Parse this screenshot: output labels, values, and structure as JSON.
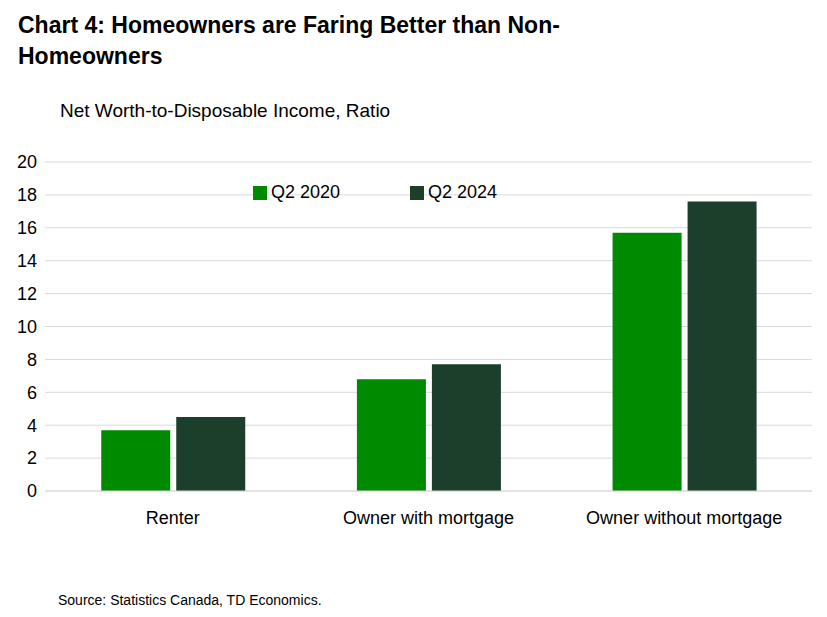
{
  "chart_data": {
    "type": "bar",
    "title": "Chart 4: Homeowners are Faring Better than Non-Homeowners",
    "ylabel": "Net Worth-to-Disposable Income, Ratio",
    "source": "Source: Statistics Canada, TD Economics.",
    "categories": [
      "Renter",
      "Owner with mortgage",
      "Owner without mortgage"
    ],
    "series": [
      {
        "name": "Q2 2020",
        "color": "#008a00",
        "values": [
          3.7,
          6.8,
          15.7
        ]
      },
      {
        "name": "Q2 2024",
        "color": "#1b3f2b",
        "values": [
          4.5,
          7.7,
          17.6
        ]
      }
    ],
    "ylim": [
      0,
      20
    ],
    "yticks": [
      0,
      2,
      4,
      6,
      8,
      10,
      12,
      14,
      16,
      18,
      20
    ],
    "grid": true,
    "legend": "top"
  }
}
